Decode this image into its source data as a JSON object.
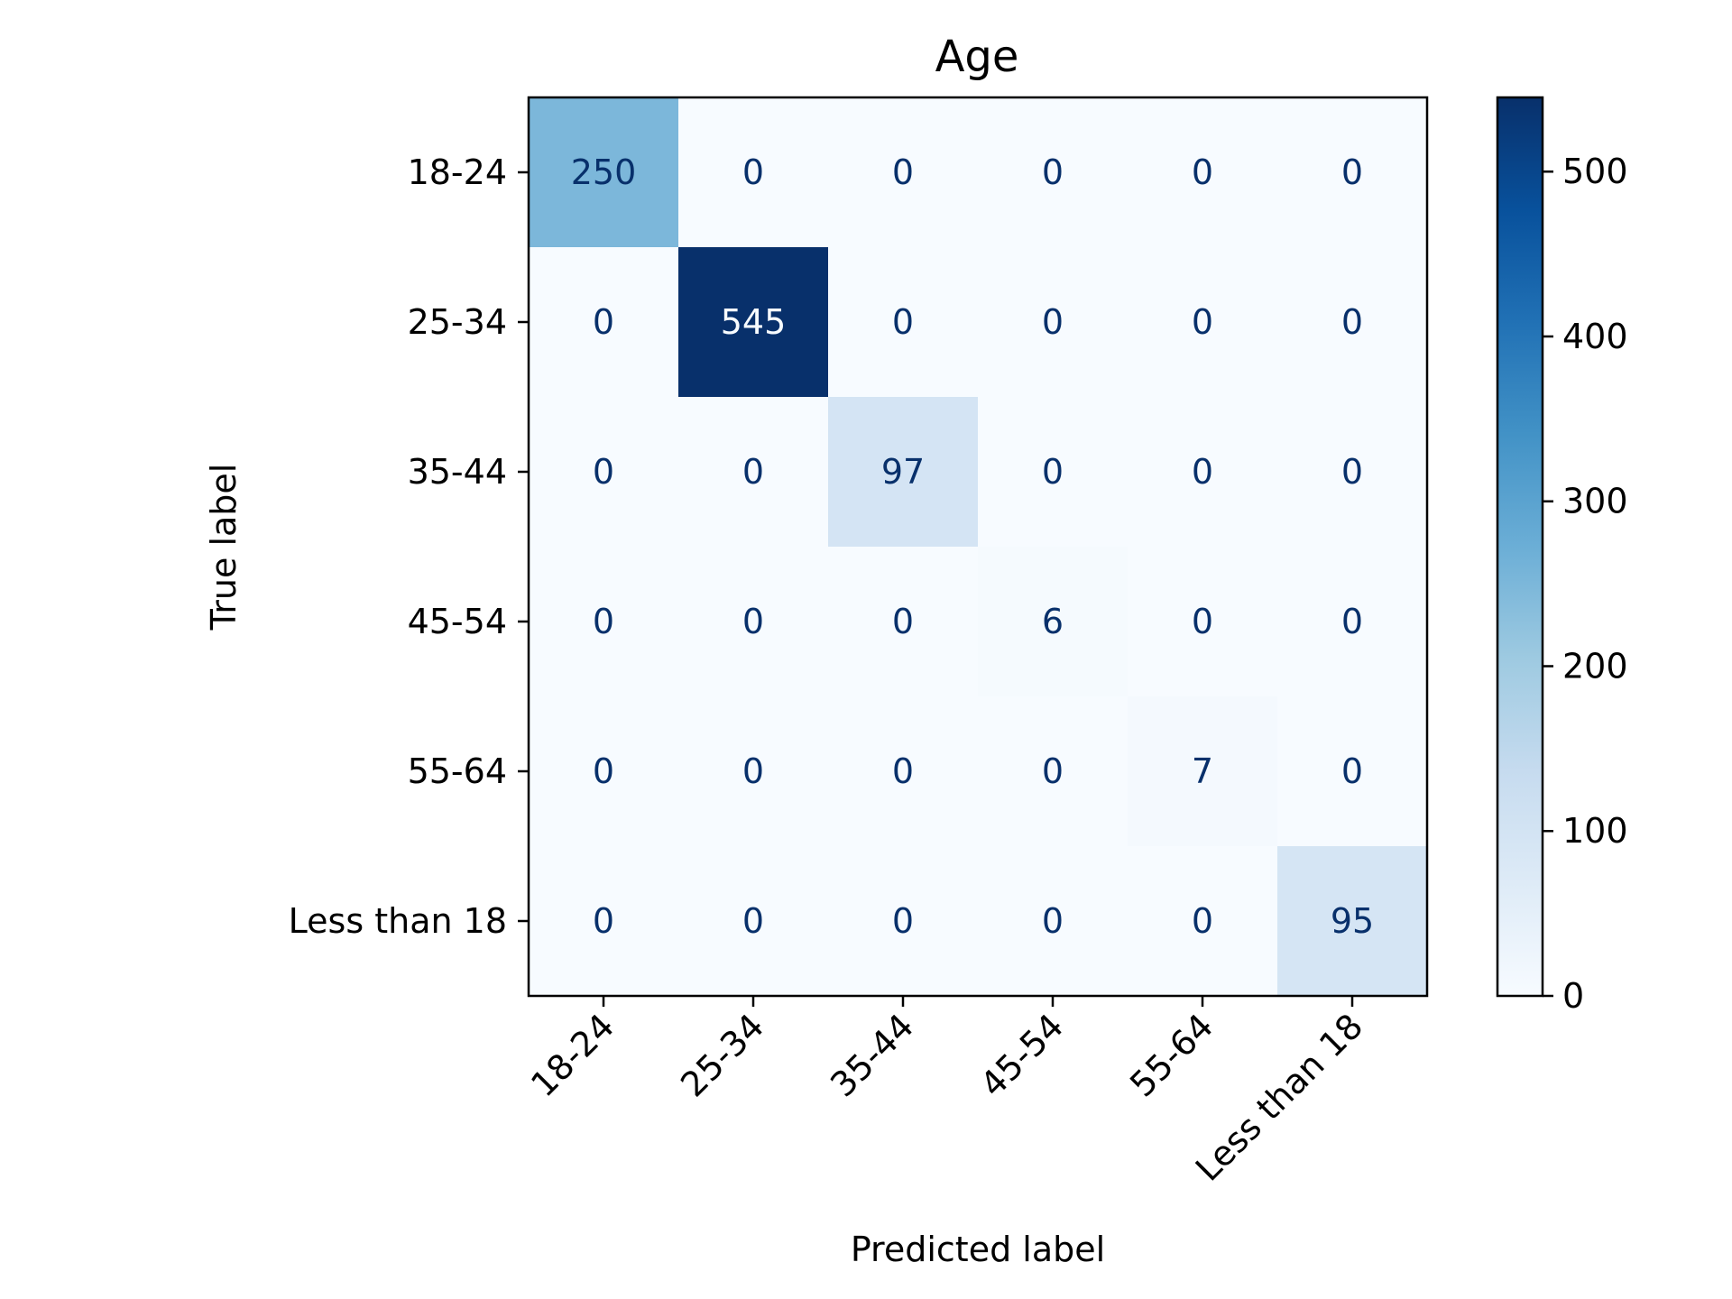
{
  "chart_data": {
    "type": "heatmap",
    "title": "Age",
    "xlabel": "Predicted label",
    "ylabel": "True label",
    "x_categories": [
      "18-24",
      "25-34",
      "35-44",
      "45-54",
      "55-64",
      "Less than 18"
    ],
    "y_categories": [
      "18-24",
      "25-34",
      "35-44",
      "45-54",
      "55-64",
      "Less than 18"
    ],
    "values": [
      [
        250,
        0,
        0,
        0,
        0,
        0
      ],
      [
        0,
        545,
        0,
        0,
        0,
        0
      ],
      [
        0,
        0,
        97,
        0,
        0,
        0
      ],
      [
        0,
        0,
        0,
        6,
        0,
        0
      ],
      [
        0,
        0,
        0,
        0,
        7,
        0
      ],
      [
        0,
        0,
        0,
        0,
        0,
        95
      ]
    ],
    "colormap": "Blues",
    "color_range": [
      0,
      545
    ],
    "colorbar_ticks": [
      0,
      100,
      200,
      300,
      400,
      500
    ],
    "label_colors": {
      "on_light": "#08306b",
      "on_dark": "#f7fbff"
    },
    "grid": false
  }
}
